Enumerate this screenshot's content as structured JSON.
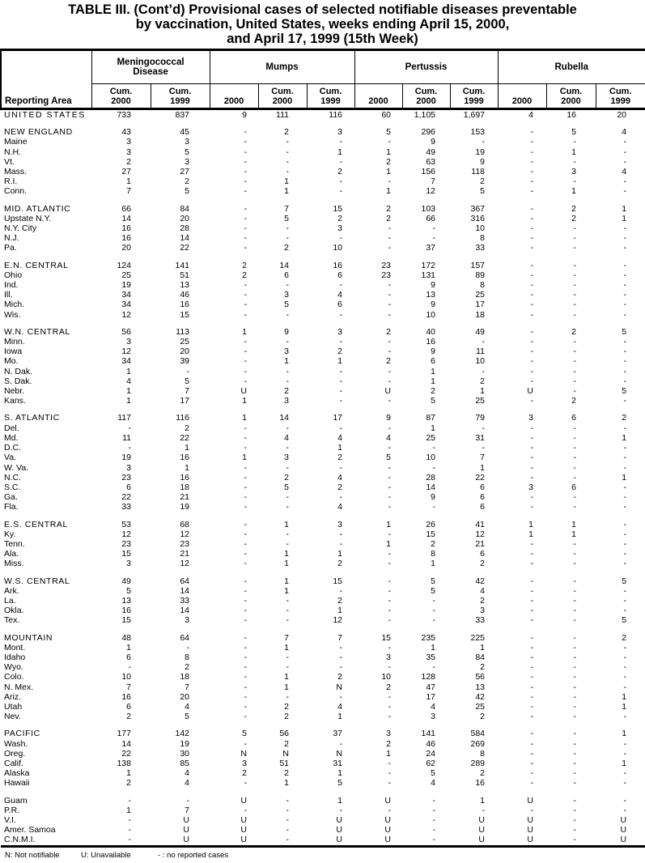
{
  "title": {
    "line1": "TABLE III. (Cont’d) Provisional cases of selected notifiable diseases preventable",
    "line2": "by vaccination, United States, weeks ending April 15, 2000,",
    "line3": "and April 17, 1999 (15th Week)"
  },
  "table": {
    "reporting_area_label": "Reporting Area",
    "groups": [
      {
        "label": "Meningococcal\nDisease"
      },
      {
        "label": "Mumps"
      },
      {
        "label": "Pertussis"
      },
      {
        "label": "Rubella"
      }
    ],
    "cols": [
      "Cum.\n2000",
      "Cum.\n1999",
      "2000",
      "Cum.\n2000",
      "Cum.\n1999",
      "2000",
      "Cum.\n2000",
      "Cum.\n1999",
      "2000",
      "Cum.\n2000",
      "Cum.\n1999"
    ],
    "rows": [
      {
        "type": "total",
        "area": "UNITED STATES",
        "v": [
          "733",
          "837",
          "9",
          "111",
          "116",
          "60",
          "1,105",
          "1,697",
          "4",
          "16",
          "20"
        ]
      },
      {
        "type": "spacer"
      },
      {
        "type": "region",
        "area": "NEW ENGLAND",
        "v": [
          "43",
          "45",
          "-",
          "2",
          "3",
          "5",
          "296",
          "153",
          "-",
          "5",
          "4"
        ]
      },
      {
        "type": "state",
        "area": "Maine",
        "v": [
          "3",
          "3",
          "-",
          "-",
          "-",
          "-",
          "9",
          "-",
          "-",
          "-",
          "-"
        ]
      },
      {
        "type": "state",
        "area": "N.H.",
        "v": [
          "3",
          "5",
          "-",
          "-",
          "1",
          "1",
          "49",
          "19",
          "-",
          "1",
          "-"
        ]
      },
      {
        "type": "state",
        "area": "Vt.",
        "v": [
          "2",
          "3",
          "-",
          "-",
          "-",
          "2",
          "63",
          "9",
          "-",
          "-",
          "-"
        ]
      },
      {
        "type": "state",
        "area": "Mass.",
        "v": [
          "27",
          "27",
          "-",
          "-",
          "2",
          "1",
          "156",
          "118",
          "-",
          "3",
          "4"
        ]
      },
      {
        "type": "state",
        "area": "R.I.",
        "v": [
          "1",
          "2",
          "-",
          "1",
          "-",
          "-",
          "7",
          "2",
          "-",
          "-",
          "-"
        ]
      },
      {
        "type": "state",
        "area": "Conn.",
        "v": [
          "7",
          "5",
          "-",
          "1",
          "-",
          "1",
          "12",
          "5",
          "-",
          "1",
          "-"
        ]
      },
      {
        "type": "spacer"
      },
      {
        "type": "region",
        "area": "MID. ATLANTIC",
        "v": [
          "66",
          "84",
          "-",
          "7",
          "15",
          "2",
          "103",
          "367",
          "-",
          "2",
          "1"
        ]
      },
      {
        "type": "state",
        "area": "Upstate N.Y.",
        "v": [
          "14",
          "20",
          "-",
          "5",
          "2",
          "2",
          "66",
          "316",
          "-",
          "2",
          "1"
        ]
      },
      {
        "type": "state",
        "area": "N.Y. City",
        "v": [
          "16",
          "28",
          "-",
          "-",
          "3",
          "-",
          "-",
          "10",
          "-",
          "-",
          "-"
        ]
      },
      {
        "type": "state",
        "area": "N.J.",
        "v": [
          "16",
          "14",
          "-",
          "-",
          "-",
          "-",
          "-",
          "8",
          "-",
          "-",
          "-"
        ]
      },
      {
        "type": "state",
        "area": "Pa.",
        "v": [
          "20",
          "22",
          "-",
          "2",
          "10",
          "-",
          "37",
          "33",
          "-",
          "-",
          "-"
        ]
      },
      {
        "type": "spacer"
      },
      {
        "type": "region",
        "area": "E.N. CENTRAL",
        "v": [
          "124",
          "141",
          "2",
          "14",
          "16",
          "23",
          "172",
          "157",
          "-",
          "-",
          "-"
        ]
      },
      {
        "type": "state",
        "area": "Ohio",
        "v": [
          "25",
          "51",
          "2",
          "6",
          "6",
          "23",
          "131",
          "89",
          "-",
          "-",
          "-"
        ]
      },
      {
        "type": "state",
        "area": "Ind.",
        "v": [
          "19",
          "13",
          "-",
          "-",
          "-",
          "-",
          "9",
          "8",
          "-",
          "-",
          "-"
        ]
      },
      {
        "type": "state",
        "area": "Ill.",
        "v": [
          "34",
          "46",
          "-",
          "3",
          "4",
          "-",
          "13",
          "25",
          "-",
          "-",
          "-"
        ]
      },
      {
        "type": "state",
        "area": "Mich.",
        "v": [
          "34",
          "16",
          "-",
          "5",
          "6",
          "-",
          "9",
          "17",
          "-",
          "-",
          "-"
        ]
      },
      {
        "type": "state",
        "area": "Wis.",
        "v": [
          "12",
          "15",
          "-",
          "-",
          "-",
          "-",
          "10",
          "18",
          "-",
          "-",
          "-"
        ]
      },
      {
        "type": "spacer"
      },
      {
        "type": "region",
        "area": "W.N. CENTRAL",
        "v": [
          "56",
          "113",
          "1",
          "9",
          "3",
          "2",
          "40",
          "49",
          "-",
          "2",
          "5"
        ]
      },
      {
        "type": "state",
        "area": "Minn.",
        "v": [
          "3",
          "25",
          "-",
          "-",
          "-",
          "-",
          "16",
          "-",
          "-",
          "-",
          "-"
        ]
      },
      {
        "type": "state",
        "area": "Iowa",
        "v": [
          "12",
          "20",
          "-",
          "3",
          "2",
          "-",
          "9",
          "11",
          "-",
          "-",
          "-"
        ]
      },
      {
        "type": "state",
        "area": "Mo.",
        "v": [
          "34",
          "39",
          "-",
          "1",
          "1",
          "2",
          "6",
          "10",
          "-",
          "-",
          "-"
        ]
      },
      {
        "type": "state",
        "area": "N. Dak.",
        "v": [
          "1",
          "-",
          "-",
          "-",
          "-",
          "-",
          "1",
          "-",
          "-",
          "-",
          "-"
        ]
      },
      {
        "type": "state",
        "area": "S. Dak.",
        "v": [
          "4",
          "5",
          "-",
          "-",
          "-",
          "-",
          "1",
          "2",
          "-",
          "-",
          "-"
        ]
      },
      {
        "type": "state",
        "area": "Nebr.",
        "v": [
          "1",
          "7",
          "U",
          "2",
          "-",
          "U",
          "2",
          "1",
          "U",
          "-",
          "5"
        ]
      },
      {
        "type": "state",
        "area": "Kans.",
        "v": [
          "1",
          "17",
          "1",
          "3",
          "-",
          "-",
          "5",
          "25",
          "-",
          "2",
          "-"
        ]
      },
      {
        "type": "spacer"
      },
      {
        "type": "region",
        "area": "S. ATLANTIC",
        "v": [
          "117",
          "116",
          "1",
          "14",
          "17",
          "9",
          "87",
          "79",
          "3",
          "6",
          "2"
        ]
      },
      {
        "type": "state",
        "area": "Del.",
        "v": [
          "-",
          "2",
          "-",
          "-",
          "-",
          "-",
          "1",
          "-",
          "-",
          "-",
          "-"
        ]
      },
      {
        "type": "state",
        "area": "Md.",
        "v": [
          "11",
          "22",
          "-",
          "4",
          "4",
          "4",
          "25",
          "31",
          "-",
          "-",
          "1"
        ]
      },
      {
        "type": "state",
        "area": "D.C.",
        "v": [
          "-",
          "1",
          "-",
          "-",
          "1",
          "-",
          "-",
          "-",
          "-",
          "-",
          "-"
        ]
      },
      {
        "type": "state",
        "area": "Va.",
        "v": [
          "19",
          "16",
          "1",
          "3",
          "2",
          "5",
          "10",
          "7",
          "-",
          "-",
          "-"
        ]
      },
      {
        "type": "state",
        "area": "W. Va.",
        "v": [
          "3",
          "1",
          "-",
          "-",
          "-",
          "-",
          "-",
          "1",
          "-",
          "-",
          "-"
        ]
      },
      {
        "type": "state",
        "area": "N.C.",
        "v": [
          "23",
          "16",
          "-",
          "2",
          "4",
          "-",
          "28",
          "22",
          "-",
          "-",
          "1"
        ]
      },
      {
        "type": "state",
        "area": "S.C.",
        "v": [
          "6",
          "18",
          "-",
          "5",
          "2",
          "-",
          "14",
          "6",
          "3",
          "6",
          "-"
        ]
      },
      {
        "type": "state",
        "area": "Ga.",
        "v": [
          "22",
          "21",
          "-",
          "-",
          "-",
          "-",
          "9",
          "6",
          "-",
          "-",
          "-"
        ]
      },
      {
        "type": "state",
        "area": "Fla.",
        "v": [
          "33",
          "19",
          "-",
          "-",
          "4",
          "-",
          "-",
          "6",
          "-",
          "-",
          "-"
        ]
      },
      {
        "type": "spacer"
      },
      {
        "type": "region",
        "area": "E.S. CENTRAL",
        "v": [
          "53",
          "68",
          "-",
          "1",
          "3",
          "1",
          "26",
          "41",
          "1",
          "1",
          "-"
        ]
      },
      {
        "type": "state",
        "area": "Ky.",
        "v": [
          "12",
          "12",
          "-",
          "-",
          "-",
          "-",
          "15",
          "12",
          "1",
          "1",
          "-"
        ]
      },
      {
        "type": "state",
        "area": "Tenn.",
        "v": [
          "23",
          "23",
          "-",
          "-",
          "-",
          "1",
          "2",
          "21",
          "-",
          "-",
          "-"
        ]
      },
      {
        "type": "state",
        "area": "Ala.",
        "v": [
          "15",
          "21",
          "-",
          "1",
          "1",
          "-",
          "8",
          "6",
          "-",
          "-",
          "-"
        ]
      },
      {
        "type": "state",
        "area": "Miss.",
        "v": [
          "3",
          "12",
          "-",
          "1",
          "2",
          "-",
          "1",
          "2",
          "-",
          "-",
          "-"
        ]
      },
      {
        "type": "spacer"
      },
      {
        "type": "region",
        "area": "W.S. CENTRAL",
        "v": [
          "49",
          "64",
          "-",
          "1",
          "15",
          "-",
          "5",
          "42",
          "-",
          "-",
          "5"
        ]
      },
      {
        "type": "state",
        "area": "Ark.",
        "v": [
          "5",
          "14",
          "-",
          "1",
          "-",
          "-",
          "5",
          "4",
          "-",
          "-",
          "-"
        ]
      },
      {
        "type": "state",
        "area": "La.",
        "v": [
          "13",
          "33",
          "-",
          "-",
          "2",
          "-",
          "-",
          "2",
          "-",
          "-",
          "-"
        ]
      },
      {
        "type": "state",
        "area": "Okla.",
        "v": [
          "16",
          "14",
          "-",
          "-",
          "1",
          "-",
          "-",
          "3",
          "-",
          "-",
          "-"
        ]
      },
      {
        "type": "state",
        "area": "Tex.",
        "v": [
          "15",
          "3",
          "-",
          "-",
          "12",
          "-",
          "-",
          "33",
          "-",
          "-",
          "5"
        ]
      },
      {
        "type": "spacer"
      },
      {
        "type": "region",
        "area": "MOUNTAIN",
        "v": [
          "48",
          "64",
          "-",
          "7",
          "7",
          "15",
          "235",
          "225",
          "-",
          "-",
          "2"
        ]
      },
      {
        "type": "state",
        "area": "Mont.",
        "v": [
          "1",
          "-",
          "-",
          "1",
          "-",
          "-",
          "1",
          "1",
          "-",
          "-",
          "-"
        ]
      },
      {
        "type": "state",
        "area": "Idaho",
        "v": [
          "6",
          "8",
          "-",
          "-",
          "-",
          "3",
          "35",
          "84",
          "-",
          "-",
          "-"
        ]
      },
      {
        "type": "state",
        "area": "Wyo.",
        "v": [
          "-",
          "2",
          "-",
          "-",
          "-",
          "-",
          "-",
          "2",
          "-",
          "-",
          "-"
        ]
      },
      {
        "type": "state",
        "area": "Colo.",
        "v": [
          "10",
          "18",
          "-",
          "1",
          "2",
          "10",
          "128",
          "56",
          "-",
          "-",
          "-"
        ]
      },
      {
        "type": "state",
        "area": "N. Mex.",
        "v": [
          "7",
          "7",
          "-",
          "1",
          "N",
          "2",
          "47",
          "13",
          "-",
          "-",
          "-"
        ]
      },
      {
        "type": "state",
        "area": "Ariz.",
        "v": [
          "16",
          "20",
          "-",
          "-",
          "-",
          "-",
          "17",
          "42",
          "-",
          "-",
          "1"
        ]
      },
      {
        "type": "state",
        "area": "Utah",
        "v": [
          "6",
          "4",
          "-",
          "2",
          "4",
          "-",
          "4",
          "25",
          "-",
          "-",
          "1"
        ]
      },
      {
        "type": "state",
        "area": "Nev.",
        "v": [
          "2",
          "5",
          "-",
          "2",
          "1",
          "-",
          "3",
          "2",
          "-",
          "-",
          "-"
        ]
      },
      {
        "type": "spacer"
      },
      {
        "type": "region",
        "area": "PACIFIC",
        "v": [
          "177",
          "142",
          "5",
          "56",
          "37",
          "3",
          "141",
          "584",
          "-",
          "-",
          "1"
        ]
      },
      {
        "type": "state",
        "area": "Wash.",
        "v": [
          "14",
          "19",
          "-",
          "2",
          "-",
          "2",
          "46",
          "269",
          "-",
          "-",
          "-"
        ]
      },
      {
        "type": "state",
        "area": "Oreg.",
        "v": [
          "22",
          "30",
          "N",
          "N",
          "N",
          "1",
          "24",
          "8",
          "-",
          "-",
          "-"
        ]
      },
      {
        "type": "state",
        "area": "Calif.",
        "v": [
          "138",
          "85",
          "3",
          "51",
          "31",
          "-",
          "62",
          "289",
          "-",
          "-",
          "1"
        ]
      },
      {
        "type": "state",
        "area": "Alaska",
        "v": [
          "1",
          "4",
          "2",
          "2",
          "1",
          "-",
          "5",
          "2",
          "-",
          "-",
          "-"
        ]
      },
      {
        "type": "state",
        "area": "Hawaii",
        "v": [
          "2",
          "4",
          "-",
          "1",
          "5",
          "-",
          "4",
          "16",
          "-",
          "-",
          "-"
        ]
      },
      {
        "type": "spacer"
      },
      {
        "type": "state",
        "area": "Guam",
        "v": [
          "-",
          "-",
          "U",
          "-",
          "1",
          "U",
          "-",
          "1",
          "U",
          "-",
          "-"
        ]
      },
      {
        "type": "state",
        "area": "P.R.",
        "v": [
          "1",
          "7",
          "-",
          "-",
          "-",
          "-",
          "-",
          "-",
          "-",
          "-",
          "-"
        ]
      },
      {
        "type": "state",
        "area": "V.I.",
        "v": [
          "-",
          "U",
          "U",
          "-",
          "U",
          "U",
          "-",
          "U",
          "U",
          "-",
          "U"
        ]
      },
      {
        "type": "state",
        "area": "Amer. Samoa",
        "v": [
          "-",
          "U",
          "U",
          "-",
          "U",
          "U",
          "-",
          "U",
          "U",
          "-",
          "U"
        ]
      },
      {
        "type": "state",
        "area": "C.N.M.I.",
        "v": [
          "-",
          "U",
          "U",
          "-",
          "U",
          "U",
          "-",
          "U",
          "U",
          "-",
          "U"
        ]
      }
    ]
  },
  "footnotes": {
    "n": "N: Not notifiable",
    "u": "U: Unavailable",
    "dash": "- : no reported cases"
  }
}
